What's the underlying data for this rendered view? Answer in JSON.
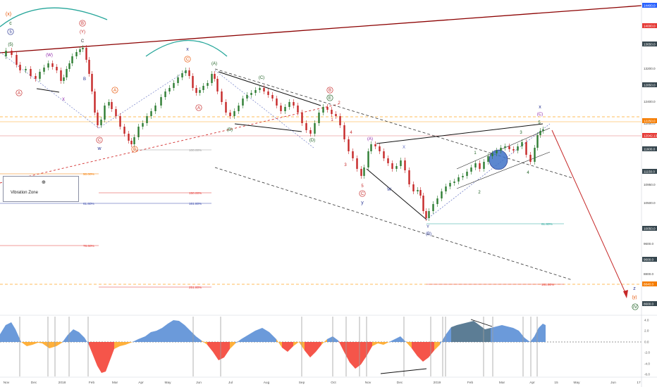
{
  "chart_data": {
    "type": "candlestick",
    "instrument_last": "12042.13",
    "price_axis": {
      "ticks": [
        "14400.0",
        "14000.0",
        "13650.0",
        "13200.0",
        "12850.0",
        "12400.0",
        "12000.0",
        "11600.0",
        "11150.0",
        "10950.0",
        "10500.0",
        "10050.0",
        "9600.0",
        "9200.0",
        "8800.0",
        "8400.0"
      ],
      "highlight_labels": [
        {
          "text": "14400.0",
          "color": "#2962ff"
        },
        {
          "text": "14000.0",
          "color": "#e53935"
        },
        {
          "text": "13650.0",
          "color": "#37474f"
        },
        {
          "text": "12850.0",
          "color": "#37474f"
        },
        {
          "text": "12250.0",
          "color": "#f57c00"
        },
        {
          "text": "12042.13",
          "color": "#e53935"
        },
        {
          "text": "11600.0",
          "color": "#37474f"
        },
        {
          "text": "11150.0",
          "color": "#37474f"
        },
        {
          "text": "10050.0",
          "color": "#37474f"
        },
        {
          "text": "9600.0",
          "color": "#37474f"
        },
        {
          "text": "8840.0",
          "color": "#f57c00"
        },
        {
          "text": "8600.0",
          "color": "#37474f"
        }
      ]
    },
    "time_axis": [
      "Nov",
      "Dec",
      "2018",
      "Feb",
      "Mar",
      "Apr",
      "May",
      "Jun",
      "Jul",
      "Aug",
      "Sep",
      "Oct",
      "Nov",
      "Dec",
      "2019",
      "Feb",
      "Mar",
      "Apr",
      "15",
      "May",
      "Jun",
      "17"
    ],
    "osc_axis": [
      "4.0",
      "2.0",
      "0.0",
      "-2.0",
      "-4.0",
      "-6.0"
    ],
    "wave_labels": {
      "x_paren": "(x)",
      "c_top": "c",
      "five_circle": "5",
      "five_paren": "(5)",
      "B_circle": "B",
      "Y_paren": "(Y)",
      "C_top": "C",
      "W_paren": "(W)",
      "X_paren": "X",
      "B_plain": "B",
      "A_circle_left": "A",
      "C_circle_left": "C",
      "w_small": "w",
      "A_orange": "A",
      "B_orange": "B",
      "x_small": "x",
      "C_orange": "C",
      "A_red": "A",
      "A_paren_green": "(A)",
      "B_paren_green": "(B)",
      "C_paren_green": "(C)",
      "D_paren_green": "(D)",
      "B_red_circle": "B",
      "E_circle_green": "E",
      "two": "2",
      "one": "1",
      "four": "4",
      "three": "3",
      "five": "5",
      "C_red_circle": "C",
      "y_small": "y",
      "A_paren_purple": "(A)",
      "X_purple": "X",
      "W_purple": "W",
      "Y_purple": "Y",
      "B_paren_purple": "(B)",
      "one_g": "1",
      "two_g": "2",
      "three_g": "3",
      "four_g": "4",
      "five_g": "5",
      "x_right": "x",
      "C_paren_right": "(C)",
      "z_right": "z",
      "y_paren_right": "(y)",
      "IV_circle": "IV"
    },
    "fib_labels": {
      "f100": "100.00%",
      "f50": "50.00%",
      "f61": "61.80%",
      "f150": "150.00%",
      "f161": "161.80%",
      "f78": "78.60%",
      "f251": "251.80%",
      "f61r": "61.80%",
      "f161r": "161.80%"
    },
    "vibration_zone": {
      "symbol": "⊕",
      "label": "Vibration Zone"
    },
    "colors": {
      "up": "#2e7d32",
      "down": "#c62828",
      "trend_red": "#8b0000",
      "orange": "#ffa726",
      "osc_blue": "#5b8fd6",
      "osc_red": "#f44336",
      "osc_orange": "#ffa726"
    }
  }
}
